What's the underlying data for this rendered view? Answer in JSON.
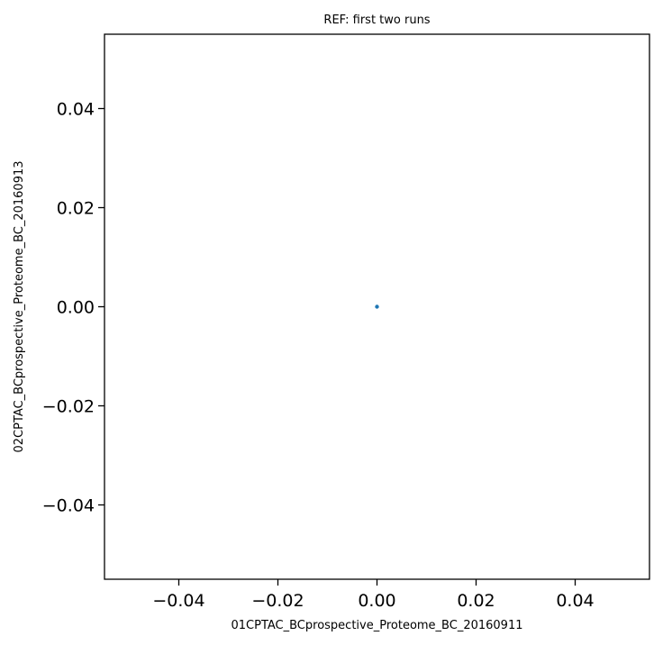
{
  "chart_data": {
    "type": "scatter",
    "title": "REF: first two runs",
    "xlabel": "01CPTAC_BCprospective_Proteome_BC_20160911",
    "ylabel": "02CPTAC_BCprospective_Proteome_BC_20160913",
    "xlim": [
      -0.055,
      0.055
    ],
    "ylim": [
      -0.055,
      0.055
    ],
    "xticks": [
      -0.04,
      -0.02,
      0.0,
      0.02,
      0.04
    ],
    "yticks": [
      -0.04,
      -0.02,
      0.0,
      0.02,
      0.04
    ],
    "xtick_labels": [
      "−0.04",
      "−0.02",
      "0.00",
      "0.02",
      "0.04"
    ],
    "ytick_labels": [
      "−0.04",
      "−0.02",
      "0.00",
      "0.02",
      "0.04"
    ],
    "grid": false,
    "point_color": "#1f77b4",
    "points": [
      {
        "x": 0.0,
        "y": 0.0
      }
    ]
  }
}
